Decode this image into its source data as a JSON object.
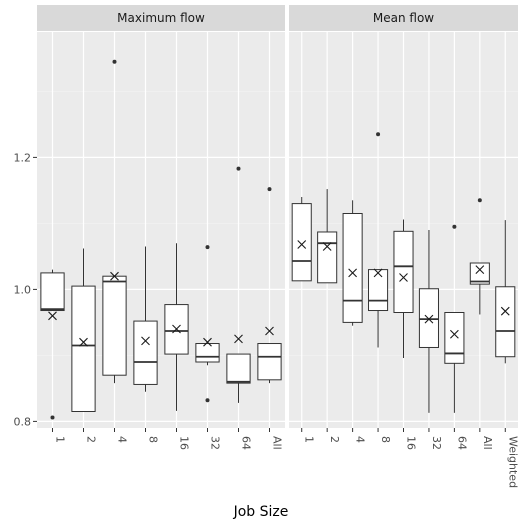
{
  "chart_data": {
    "type": "boxplot",
    "xlabel": "Job Size",
    "ylabel": "",
    "ylim": [
      0.79,
      1.39
    ],
    "yticks": [
      0.8,
      1.0,
      1.2
    ],
    "grid": true,
    "legend": "none",
    "colors": {
      "panel_bg": "#ebebeb",
      "strip_bg": "#d9d9d9",
      "grid_major": "#ffffff",
      "grid_minor": "#f4f4f4",
      "box_fill": "#ffffff",
      "line": "#333333"
    },
    "panels": [
      {
        "title": "Maximum flow",
        "categories": [
          "1",
          "2",
          "4",
          "8",
          "16",
          "32",
          "64",
          "All"
        ],
        "boxes": [
          {
            "q1": 0.968,
            "median": 0.97,
            "q3": 1.025,
            "whisker_low": 0.968,
            "whisker_high": 1.03,
            "mean": 0.96,
            "outliers": [
              0.806
            ]
          },
          {
            "q1": 0.815,
            "median": 0.915,
            "q3": 1.005,
            "whisker_low": 0.815,
            "whisker_high": 1.062,
            "mean": 0.92,
            "outliers": []
          },
          {
            "q1": 0.87,
            "median": 1.012,
            "q3": 1.02,
            "whisker_low": 0.858,
            "whisker_high": 1.02,
            "mean": 1.02,
            "outliers": [
              1.345
            ]
          },
          {
            "q1": 0.856,
            "median": 0.89,
            "q3": 0.952,
            "whisker_low": 0.845,
            "whisker_high": 1.065,
            "mean": 0.922,
            "outliers": []
          },
          {
            "q1": 0.902,
            "median": 0.937,
            "q3": 0.977,
            "whisker_low": 0.816,
            "whisker_high": 1.07,
            "mean": 0.94,
            "outliers": []
          },
          {
            "q1": 0.89,
            "median": 0.898,
            "q3": 0.918,
            "whisker_low": 0.885,
            "whisker_high": 0.918,
            "mean": 0.92,
            "outliers": [
              1.064,
              0.832
            ]
          },
          {
            "q1": 0.858,
            "median": 0.86,
            "q3": 0.902,
            "whisker_low": 0.828,
            "whisker_high": 0.902,
            "mean": 0.925,
            "outliers": [
              1.183
            ]
          },
          {
            "q1": 0.863,
            "median": 0.898,
            "q3": 0.918,
            "whisker_low": 0.858,
            "whisker_high": 0.918,
            "mean": 0.937,
            "outliers": [
              1.152
            ]
          }
        ]
      },
      {
        "title": "Mean flow",
        "categories": [
          "1",
          "2",
          "4",
          "8",
          "16",
          "32",
          "64",
          "All",
          "Weighted"
        ],
        "boxes": [
          {
            "q1": 1.013,
            "median": 1.043,
            "q3": 1.13,
            "whisker_low": 1.013,
            "whisker_high": 1.14,
            "mean": 1.068,
            "outliers": []
          },
          {
            "q1": 1.01,
            "median": 1.07,
            "q3": 1.087,
            "whisker_low": 1.01,
            "whisker_high": 1.152,
            "mean": 1.065,
            "outliers": []
          },
          {
            "q1": 0.95,
            "median": 0.983,
            "q3": 1.115,
            "whisker_low": 0.945,
            "whisker_high": 1.135,
            "mean": 1.025,
            "outliers": []
          },
          {
            "q1": 0.968,
            "median": 0.983,
            "q3": 1.03,
            "whisker_low": 0.912,
            "whisker_high": 1.03,
            "mean": 1.025,
            "outliers": [
              1.235
            ]
          },
          {
            "q1": 0.965,
            "median": 1.035,
            "q3": 1.088,
            "whisker_low": 0.896,
            "whisker_high": 1.106,
            "mean": 1.018,
            "outliers": []
          },
          {
            "q1": 0.912,
            "median": 0.955,
            "q3": 1.001,
            "whisker_low": 0.813,
            "whisker_high": 1.09,
            "mean": 0.955,
            "outliers": []
          },
          {
            "q1": 0.888,
            "median": 0.903,
            "q3": 0.965,
            "whisker_low": 0.813,
            "whisker_high": 0.965,
            "mean": 0.932,
            "outliers": [
              1.095
            ]
          },
          {
            "q1": 1.008,
            "median": 1.012,
            "q3": 1.04,
            "whisker_low": 0.962,
            "whisker_high": 1.04,
            "mean": 1.03,
            "outliers": [
              1.135
            ]
          },
          {
            "q1": 0.898,
            "median": 0.937,
            "q3": 1.004,
            "whisker_low": 0.888,
            "whisker_high": 1.105,
            "mean": 0.967,
            "outliers": []
          }
        ]
      }
    ]
  }
}
